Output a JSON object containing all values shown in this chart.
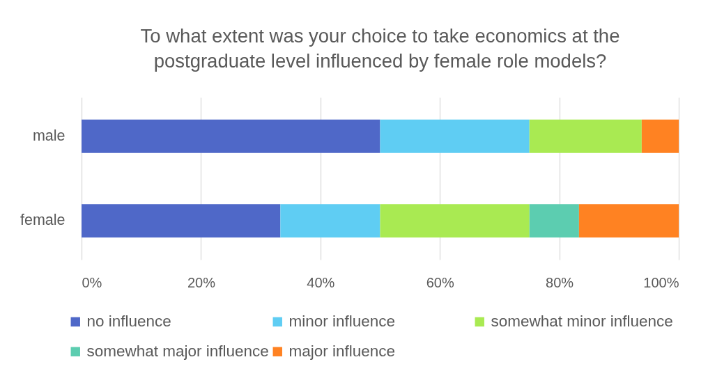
{
  "chart_data": {
    "type": "bar",
    "orientation": "horizontal",
    "stacked": true,
    "title": "To what extent was your choice to take economics at the postgraduate level influenced by female role models?",
    "categories": [
      "male",
      "female"
    ],
    "series": [
      {
        "name": "no influence",
        "color": "#4f68c8",
        "values": [
          50,
          33.3
        ]
      },
      {
        "name": "minor influence",
        "color": "#5fcdf3",
        "values": [
          25,
          16.7
        ]
      },
      {
        "name": "somewhat minor influence",
        "color": "#a9ea52",
        "values": [
          18.8,
          25
        ]
      },
      {
        "name": "somewhat major influence",
        "color": "#5ccdb0",
        "values": [
          null,
          8.3
        ]
      },
      {
        "name": "major influence",
        "color": "#ff8222",
        "values": [
          6.2,
          16.7
        ]
      }
    ],
    "xlim": [
      0,
      100
    ],
    "xticks": [
      {
        "value": 0,
        "label": "0%"
      },
      {
        "value": 20,
        "label": "20%"
      },
      {
        "value": 40,
        "label": "40%"
      },
      {
        "value": 60,
        "label": "60%"
      },
      {
        "value": 80,
        "label": "80%"
      },
      {
        "value": 100,
        "label": "100%"
      }
    ],
    "grid": "x",
    "legend": "bottom"
  }
}
